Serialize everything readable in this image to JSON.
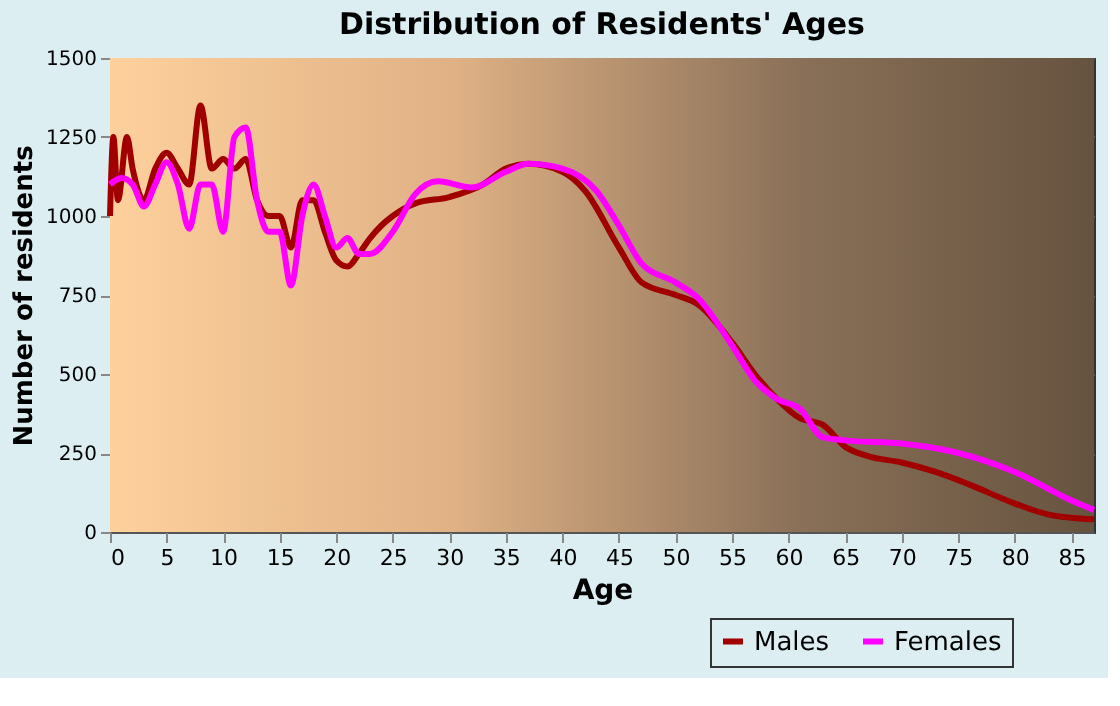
{
  "chart_data": {
    "type": "line",
    "title": "Distribution of Residents' Ages",
    "xlabel": "Age",
    "ylabel": "Number of residents",
    "xlim": [
      0,
      87
    ],
    "xticks": [
      0,
      5,
      10,
      15,
      20,
      25,
      30,
      35,
      40,
      45,
      50,
      55,
      60,
      65,
      70,
      75,
      80,
      85
    ],
    "ylim": [
      0,
      1500
    ],
    "yticks": [
      0,
      250,
      500,
      750,
      1000,
      1250,
      1500
    ],
    "grid": true,
    "legend": "bottom right",
    "line_style": "solid",
    "marker": "none",
    "series": [
      {
        "name": "Males",
        "color": "#a00000",
        "x": [
          0,
          0.3,
          0.7,
          1.5,
          2,
          3,
          4,
          5,
          6,
          7,
          8,
          9,
          10,
          11,
          12,
          13,
          14,
          15,
          16,
          17,
          18,
          19,
          20,
          21,
          22,
          23,
          24,
          25,
          27,
          30,
          33,
          35,
          37,
          40,
          42,
          45,
          47,
          50,
          52,
          55,
          57,
          59,
          61,
          63,
          65,
          67,
          70,
          73,
          76,
          80,
          83,
          87
        ],
        "values": [
          1000,
          1250,
          1050,
          1250,
          1150,
          1050,
          1150,
          1200,
          1150,
          1100,
          1350,
          1150,
          1180,
          1150,
          1180,
          1050,
          1000,
          1000,
          900,
          1050,
          1050,
          950,
          860,
          840,
          880,
          930,
          970,
          1000,
          1040,
          1060,
          1100,
          1150,
          1165,
          1140,
          1080,
          900,
          790,
          750,
          720,
          600,
          500,
          420,
          360,
          340,
          270,
          240,
          220,
          190,
          150,
          90,
          55,
          40
        ]
      },
      {
        "name": "Females",
        "color": "#ff00ff",
        "x": [
          0,
          1,
          2,
          3,
          4,
          5,
          6,
          7,
          8,
          9,
          10,
          11,
          12,
          13,
          14,
          15,
          16,
          17,
          18,
          19,
          20,
          21,
          22,
          23,
          25,
          27,
          29,
          32,
          35,
          37,
          40,
          43,
          45,
          47,
          50,
          52,
          55,
          57,
          59,
          61,
          63,
          65,
          70,
          75,
          80,
          85,
          87
        ],
        "values": [
          1100,
          1120,
          1100,
          1030,
          1100,
          1170,
          1100,
          960,
          1100,
          1100,
          950,
          1250,
          1280,
          1050,
          950,
          950,
          780,
          1000,
          1100,
          1000,
          900,
          930,
          880,
          880,
          950,
          1070,
          1110,
          1090,
          1140,
          1165,
          1150,
          1080,
          970,
          850,
          790,
          740,
          590,
          480,
          420,
          390,
          300,
          290,
          280,
          250,
          190,
          100,
          70
        ]
      }
    ]
  }
}
